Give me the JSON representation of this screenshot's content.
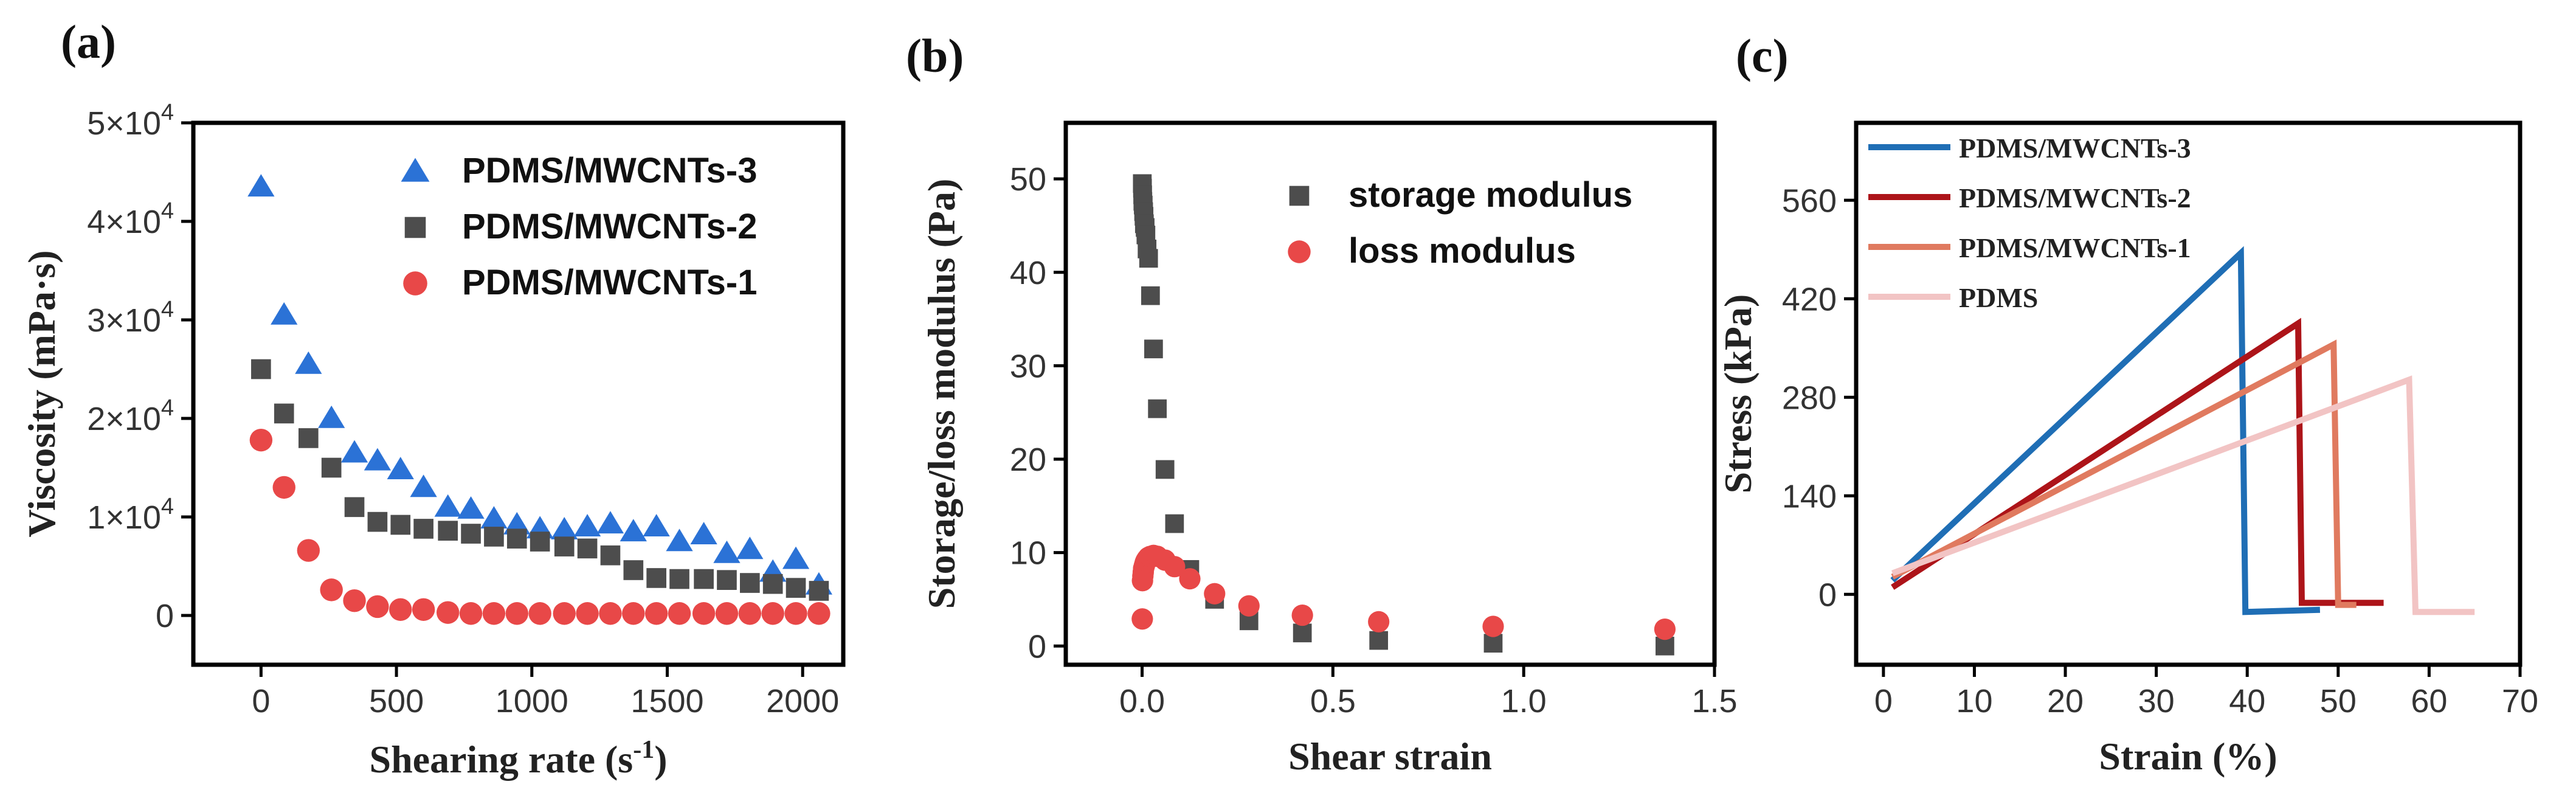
{
  "chart_data": [
    {
      "panel": "(a)",
      "type": "scatter",
      "xlabel": "Shearing rate (s",
      "xlabel_sup": "-1",
      "xlabel_end": ")",
      "ylabel": "Viscosity (mPa·s)",
      "xlim": [
        -250,
        2150
      ],
      "ylim": [
        -5000,
        50000
      ],
      "xticks": [
        0,
        500,
        1000,
        1500,
        2000
      ],
      "yticks": [
        {
          "value": 0,
          "label": "0",
          "sup": ""
        },
        {
          "value": 10000,
          "label": "1×10",
          "sup": "4"
        },
        {
          "value": 20000,
          "label": "2×10",
          "sup": "4"
        },
        {
          "value": 30000,
          "label": "3×10",
          "sup": "4"
        },
        {
          "value": 40000,
          "label": "4×10",
          "sup": "4"
        },
        {
          "value": 50000,
          "label": "5×10",
          "sup": "4"
        }
      ],
      "legend_position": "top-right",
      "series": [
        {
          "name": "PDMS/MWCNTs-3",
          "marker": "triangle",
          "color": "#2b72d6",
          "x": [
            0,
            85,
            175,
            260,
            345,
            430,
            515,
            600,
            690,
            775,
            860,
            945,
            1030,
            1120,
            1205,
            1290,
            1375,
            1460,
            1545,
            1635,
            1720,
            1805,
            1890,
            1975,
            2060
          ],
          "y": [
            43500,
            30500,
            25500,
            20000,
            16500,
            15700,
            14800,
            13000,
            11000,
            10800,
            9800,
            9200,
            8800,
            8700,
            9000,
            9300,
            8500,
            9000,
            7500,
            8200,
            6300,
            6700,
            4400,
            5700,
            3100
          ]
        },
        {
          "name": "PDMS/MWCNTs-2",
          "marker": "square",
          "color": "#4d4d4d",
          "x": [
            0,
            85,
            175,
            260,
            345,
            430,
            515,
            600,
            690,
            775,
            860,
            945,
            1030,
            1120,
            1205,
            1290,
            1375,
            1460,
            1545,
            1635,
            1720,
            1805,
            1890,
            1975,
            2060
          ],
          "y": [
            25000,
            20500,
            18000,
            15000,
            11000,
            9500,
            9200,
            8800,
            8600,
            8300,
            8000,
            7800,
            7500,
            7000,
            6800,
            6100,
            4600,
            3800,
            3700,
            3700,
            3600,
            3300,
            3200,
            2800,
            2500
          ]
        },
        {
          "name": "PDMS/MWCNTs-1",
          "marker": "circle",
          "color": "#e84848",
          "x": [
            0,
            85,
            175,
            260,
            345,
            430,
            515,
            600,
            690,
            775,
            860,
            945,
            1030,
            1120,
            1205,
            1290,
            1375,
            1460,
            1545,
            1635,
            1720,
            1805,
            1890,
            1975,
            2060
          ],
          "y": [
            17800,
            13000,
            6600,
            2600,
            1500,
            900,
            600,
            600,
            300,
            200,
            200,
            200,
            200,
            200,
            200,
            200,
            200,
            200,
            200,
            200,
            200,
            200,
            200,
            200,
            200
          ]
        }
      ]
    },
    {
      "panel": "(b)",
      "type": "scatter",
      "xlabel": "Shear strain",
      "ylabel": "Storage/loss modulus (Pa)",
      "xlim": [
        -0.2,
        1.5
      ],
      "ylim": [
        -2,
        56
      ],
      "xticks": [
        0.0,
        0.5,
        1.0,
        1.5
      ],
      "xtick_labels": [
        "0.0",
        "0.5",
        "1.0",
        "1.5"
      ],
      "yticks": [
        0,
        10,
        20,
        30,
        40,
        50
      ],
      "legend_position": "top-right",
      "series": [
        {
          "name": "storage modulus",
          "marker": "square",
          "color": "#4d4d4d",
          "x": [
            0.0005,
            0.001,
            0.0015,
            0.002,
            0.003,
            0.004,
            0.005,
            0.006,
            0.008,
            0.01,
            0.013,
            0.017,
            0.022,
            0.03,
            0.04,
            0.06,
            0.085,
            0.125,
            0.19,
            0.28,
            0.42,
            0.62,
            0.92,
            1.37
          ],
          "y": [
            49.5,
            49.0,
            48.3,
            47.6,
            47.2,
            46.5,
            46.0,
            45.2,
            44.8,
            44.0,
            42.5,
            41.5,
            37.5,
            31.8,
            25.4,
            18.9,
            13.1,
            8.2,
            5.0,
            2.7,
            1.4,
            0.6,
            0.3,
            0.0
          ]
        },
        {
          "name": "loss modulus",
          "marker": "circle",
          "color": "#e84848",
          "x": [
            0.0005,
            0.001,
            0.002,
            0.003,
            0.004,
            0.006,
            0.008,
            0.01,
            0.013,
            0.017,
            0.022,
            0.03,
            0.04,
            0.06,
            0.085,
            0.125,
            0.19,
            0.28,
            0.42,
            0.62,
            0.92,
            1.37
          ],
          "y": [
            2.9,
            7.0,
            7.5,
            7.9,
            8.3,
            8.6,
            8.9,
            9.1,
            9.3,
            9.5,
            9.6,
            9.7,
            9.6,
            9.2,
            8.5,
            7.2,
            5.6,
            4.3,
            3.3,
            2.6,
            2.1,
            1.8
          ]
        }
      ]
    },
    {
      "panel": "(c)",
      "type": "line",
      "xlabel": "Strain (%)",
      "ylabel": "Stress (kPa)",
      "xlim": [
        -3,
        70
      ],
      "ylim": [
        -100,
        670
      ],
      "xticks": [
        0,
        10,
        20,
        30,
        40,
        50,
        60,
        70
      ],
      "yticks": [
        0,
        140,
        280,
        420,
        560
      ],
      "legend_position": "top-left",
      "series": [
        {
          "name": "PDMS/MWCNTs-3",
          "color": "#1f6eb5",
          "x": [
            1,
            39.3,
            39.8,
            48
          ],
          "y": [
            20,
            485,
            -25,
            -22
          ]
        },
        {
          "name": "PDMS/MWCNTs-2",
          "color": "#ad1419",
          "x": [
            1,
            45.6,
            46.0,
            55
          ],
          "y": [
            10,
            385,
            -12,
            -12
          ]
        },
        {
          "name": "PDMS/MWCNTs-1",
          "color": "#e07a5f",
          "x": [
            1,
            49.5,
            50.0,
            52
          ],
          "y": [
            25,
            355,
            -15,
            -15
          ]
        },
        {
          "name": "PDMS",
          "color": "#f2c4c4",
          "x": [
            1,
            57.8,
            58.5,
            65
          ],
          "y": [
            30,
            305,
            -25,
            -25
          ]
        }
      ]
    }
  ]
}
